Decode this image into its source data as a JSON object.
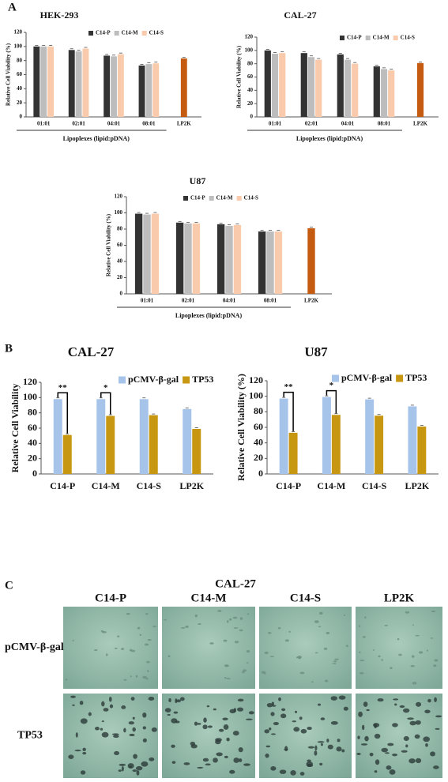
{
  "panel_labels": [
    "A",
    "B",
    "C"
  ],
  "chart_data": [
    {
      "type": "bar",
      "title": "HEK-293",
      "y_label": "Relative Cell Viability (%)",
      "x_label": "Lipoplexes (lipid:pDNA)",
      "categories": [
        "01:01",
        "02:01",
        "04:01",
        "08:01",
        "LP2K"
      ],
      "series": [
        {
          "name": "C14-P",
          "color": "#333333",
          "values": [
            100,
            95,
            87,
            73,
            null
          ]
        },
        {
          "name": "C14-M",
          "color": "#bdbdbd",
          "values": [
            100,
            93,
            86,
            75,
            null
          ]
        },
        {
          "name": "C14-S",
          "color": "#f9cbac",
          "values": [
            100,
            97,
            89,
            76,
            null
          ]
        },
        {
          "color": "#c55a11",
          "values": [
            null,
            null,
            null,
            null,
            83
          ]
        }
      ],
      "ylim": [
        0,
        120
      ],
      "yticks": [
        0,
        20,
        40,
        60,
        80,
        100,
        120
      ]
    },
    {
      "type": "bar",
      "title": "CAL-27",
      "y_label": "Relative Cell Viability (%)",
      "x_label": "Lipoplexes (lipid:pDNA)",
      "categories": [
        "01:01",
        "02:01",
        "04:01",
        "08:01",
        "LP2K"
      ],
      "series": [
        {
          "name": "C14-P",
          "color": "#333333",
          "values": [
            100,
            96,
            94,
            76,
            null
          ]
        },
        {
          "name": "C14-M",
          "color": "#bdbdbd",
          "values": [
            95,
            90,
            86,
            72,
            null
          ]
        },
        {
          "name": "C14-S",
          "color": "#f9cbac",
          "values": [
            96,
            86,
            80,
            70,
            null
          ]
        },
        {
          "color": "#c55a11",
          "values": [
            null,
            null,
            null,
            null,
            81
          ]
        }
      ],
      "ylim": [
        0,
        120
      ],
      "yticks": [
        0,
        20,
        40,
        60,
        80,
        100,
        120
      ]
    },
    {
      "type": "bar",
      "title": "U87",
      "y_label": "Relative Cell Viability (%)",
      "x_label": "Lipoplexes (lipid:pDNA)",
      "categories": [
        "01:01",
        "02:01",
        "04:01",
        "08:01",
        "LP2K"
      ],
      "series": [
        {
          "name": "C14-P",
          "color": "#333333",
          "values": [
            99,
            88,
            86,
            77,
            null
          ]
        },
        {
          "name": "C14-M",
          "color": "#bdbdbd",
          "values": [
            98,
            87,
            84,
            77,
            null
          ]
        },
        {
          "name": "C14-S",
          "color": "#f9cbac",
          "values": [
            99,
            87,
            85,
            77,
            null
          ]
        },
        {
          "color": "#c55a11",
          "values": [
            null,
            null,
            null,
            null,
            81
          ]
        }
      ],
      "ylim": [
        0,
        120
      ],
      "yticks": [
        0,
        20,
        40,
        60,
        80,
        100,
        120
      ]
    },
    {
      "type": "bar",
      "title": "CAL-27",
      "y_label": "Relative  Cell Viability",
      "categories": [
        "C14-P",
        "C14-M",
        "C14-S",
        "LP2K"
      ],
      "series": [
        {
          "name": "pCMV-β-gal",
          "color": "#a6c3ea",
          "values": [
            98,
            98,
            98,
            85
          ]
        },
        {
          "name": "TP53",
          "color": "#c89712",
          "values": [
            51,
            76,
            77,
            59
          ]
        }
      ],
      "annotations": [
        "**",
        "*"
      ],
      "ylim": [
        0,
        120
      ],
      "yticks": [
        0,
        20,
        40,
        60,
        80,
        100,
        120
      ]
    },
    {
      "type": "bar",
      "title": "U87",
      "y_label": "Relative  Cell Viability  (%)",
      "categories": [
        "C14-P",
        "C14-M",
        "C14-S",
        "LP2K"
      ],
      "series": [
        {
          "name": "pCMV-β-gal",
          "color": "#a6c3ea",
          "values": [
            97,
            99,
            96,
            87
          ]
        },
        {
          "name": "TP53",
          "color": "#c89712",
          "values": [
            53,
            76,
            75,
            61
          ]
        }
      ],
      "annotations": [
        "**",
        "*"
      ],
      "ylim": [
        0,
        120
      ],
      "yticks": [
        0,
        20,
        40,
        60,
        80,
        100,
        120
      ]
    }
  ],
  "image_grid": {
    "title": "CAL-27",
    "columns": [
      "C14-P",
      "C14-M",
      "C14-S",
      "LP2K"
    ],
    "rows": [
      "pCMV-β-gal",
      "TP53"
    ]
  }
}
